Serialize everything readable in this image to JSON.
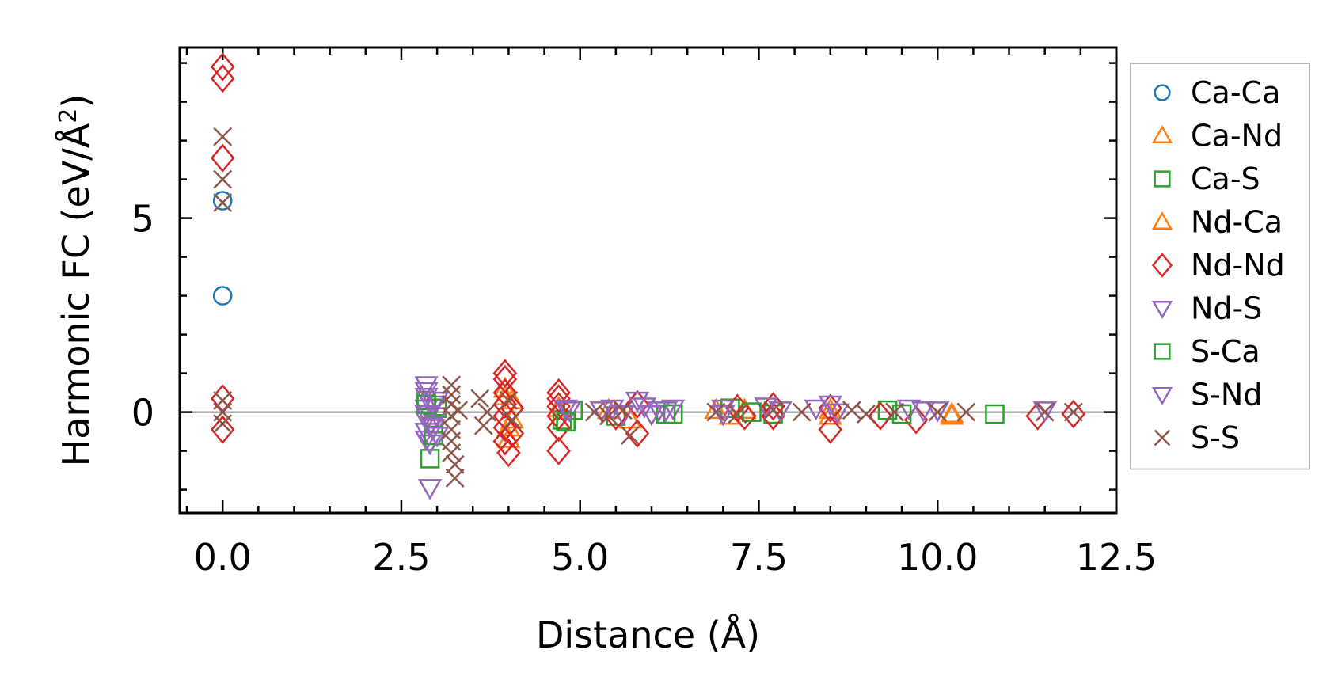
{
  "chart_data": {
    "type": "scatter",
    "title": "",
    "xlabel": "Distance (Å)",
    "ylabel_main": "Harmonic FC (eV/Å",
    "ylabel_sup": "2",
    "ylabel_close": ")",
    "xlim": [
      -0.6,
      12.5
    ],
    "ylim": [
      -2.6,
      9.4
    ],
    "xticks": [
      0.0,
      2.5,
      5.0,
      7.5,
      10.0,
      12.5
    ],
    "xtick_labels": [
      "0.0",
      "2.5",
      "5.0",
      "7.5",
      "10.0",
      "12.5"
    ],
    "yticks": [
      0,
      5
    ],
    "ytick_labels": [
      "0",
      "5"
    ],
    "reference_line_y": 0,
    "legend_position": "right-outside",
    "series": [
      {
        "name": "Ca-Ca",
        "marker": "circle",
        "color": "#1f77b4",
        "points": [
          [
            0,
            5.45
          ],
          [
            0,
            3.0
          ]
        ]
      },
      {
        "name": "Ca-Nd",
        "marker": "triangle-up",
        "color": "#ff7f0e",
        "points": [
          [
            3.95,
            0.6
          ],
          [
            4.0,
            -0.4
          ],
          [
            4.05,
            0.3
          ],
          [
            4.7,
            0.1
          ],
          [
            5.7,
            -0.2
          ],
          [
            7.1,
            -0.1
          ],
          [
            7.3,
            0.05
          ],
          [
            8.5,
            -0.1
          ],
          [
            10.2,
            -0.1
          ]
        ]
      },
      {
        "name": "Ca-S",
        "marker": "square",
        "color": "#2ca02c",
        "points": [
          [
            2.85,
            0.3
          ],
          [
            2.9,
            -1.2
          ],
          [
            2.95,
            -0.3
          ],
          [
            3.0,
            0.1
          ],
          [
            4.75,
            -0.2
          ],
          [
            4.9,
            0.05
          ],
          [
            5.5,
            -0.1
          ],
          [
            6.3,
            -0.05
          ],
          [
            7.1,
            0.1
          ],
          [
            7.7,
            -0.05
          ],
          [
            9.3,
            0.05
          ],
          [
            10.8,
            -0.05
          ]
        ]
      },
      {
        "name": "Nd-Ca",
        "marker": "triangle-up",
        "color": "#ff7f0e",
        "points": [
          [
            3.95,
            0.4
          ],
          [
            4.0,
            -0.7
          ],
          [
            4.05,
            -0.2
          ],
          [
            5.4,
            0.05
          ],
          [
            6.9,
            0.05
          ],
          [
            8.5,
            0.05
          ],
          [
            10.2,
            -0.05
          ]
        ]
      },
      {
        "name": "Nd-Nd",
        "marker": "diamond",
        "color": "#d62728",
        "points": [
          [
            0,
            8.9
          ],
          [
            0,
            8.6
          ],
          [
            0,
            6.55
          ],
          [
            0,
            0.35
          ],
          [
            0,
            -0.45
          ],
          [
            3.95,
            1.0
          ],
          [
            3.95,
            0.85
          ],
          [
            3.95,
            0.5
          ],
          [
            3.95,
            0.2
          ],
          [
            3.95,
            -0.1
          ],
          [
            3.95,
            -0.4
          ],
          [
            3.95,
            -0.75
          ],
          [
            4.0,
            -1.05
          ],
          [
            4.05,
            -0.55
          ],
          [
            4.05,
            0.1
          ],
          [
            4.7,
            0.5
          ],
          [
            4.7,
            0.35
          ],
          [
            4.7,
            0.15
          ],
          [
            4.7,
            -0.1
          ],
          [
            4.7,
            -0.4
          ],
          [
            4.7,
            -1.0
          ],
          [
            5.5,
            -0.1
          ],
          [
            5.8,
            -0.55
          ],
          [
            5.8,
            0.2
          ],
          [
            7.2,
            0.1
          ],
          [
            7.3,
            -0.1
          ],
          [
            7.7,
            -0.1
          ],
          [
            7.7,
            0.15
          ],
          [
            8.5,
            -0.45
          ],
          [
            8.5,
            0.1
          ],
          [
            9.2,
            -0.1
          ],
          [
            9.7,
            -0.2
          ],
          [
            11.4,
            -0.1
          ],
          [
            11.9,
            -0.05
          ]
        ]
      },
      {
        "name": "Nd-S",
        "marker": "triangle-down",
        "color": "#9467bd",
        "points": [
          [
            2.85,
            0.7
          ],
          [
            2.85,
            0.4
          ],
          [
            2.85,
            0.1
          ],
          [
            2.85,
            -0.2
          ],
          [
            2.85,
            -0.5
          ],
          [
            2.9,
            -0.8
          ],
          [
            2.9,
            -1.95
          ],
          [
            2.95,
            0.2
          ],
          [
            2.95,
            -0.4
          ],
          [
            3.0,
            -0.1
          ],
          [
            4.85,
            0.05
          ],
          [
            5.45,
            0.1
          ],
          [
            5.8,
            0.3
          ],
          [
            6.1,
            0.05
          ],
          [
            6.3,
            0.1
          ],
          [
            7.0,
            0.1
          ],
          [
            7.6,
            0.15
          ],
          [
            8.3,
            0.1
          ],
          [
            8.5,
            0.2
          ],
          [
            9.6,
            0.1
          ],
          [
            10.0,
            0.05
          ],
          [
            11.5,
            0.05
          ]
        ]
      },
      {
        "name": "S-Ca",
        "marker": "square",
        "color": "#2ca02c",
        "points": [
          [
            2.85,
            0.2
          ],
          [
            2.95,
            -0.6
          ],
          [
            4.8,
            -0.25
          ],
          [
            6.2,
            -0.05
          ],
          [
            7.4,
            0.0
          ],
          [
            9.5,
            -0.05
          ]
        ]
      },
      {
        "name": "S-Nd",
        "marker": "triangle-down",
        "color": "#9467bd",
        "points": [
          [
            2.85,
            0.55
          ],
          [
            2.85,
            -0.05
          ],
          [
            2.85,
            -0.7
          ],
          [
            2.9,
            -0.35
          ],
          [
            3.0,
            0.3
          ],
          [
            3.0,
            -0.6
          ],
          [
            4.8,
            0.1
          ],
          [
            5.3,
            0.05
          ],
          [
            5.6,
            -0.05
          ],
          [
            5.9,
            0.15
          ],
          [
            6.0,
            -0.05
          ],
          [
            6.2,
            0.05
          ],
          [
            7.0,
            -0.05
          ],
          [
            7.8,
            0.05
          ],
          [
            8.6,
            0.0
          ],
          [
            9.8,
            0.05
          ]
        ]
      },
      {
        "name": "S-S",
        "marker": "x",
        "color": "#8c564b",
        "points": [
          [
            0,
            7.1
          ],
          [
            0,
            6.0
          ],
          [
            0,
            5.4
          ],
          [
            0,
            0.3
          ],
          [
            0,
            0.0
          ],
          [
            0,
            -0.3
          ],
          [
            3.2,
            0.7
          ],
          [
            3.2,
            0.45
          ],
          [
            3.2,
            0.2
          ],
          [
            3.2,
            -0.1
          ],
          [
            3.2,
            -0.45
          ],
          [
            3.2,
            -0.75
          ],
          [
            3.2,
            -1.05
          ],
          [
            3.25,
            -1.35
          ],
          [
            3.25,
            -1.7
          ],
          [
            3.3,
            0.05
          ],
          [
            3.6,
            0.35
          ],
          [
            3.65,
            -0.35
          ],
          [
            3.7,
            0.0
          ],
          [
            4.0,
            0.3
          ],
          [
            4.05,
            -0.2
          ],
          [
            5.2,
            0.0
          ],
          [
            5.4,
            -0.1
          ],
          [
            5.6,
            0.05
          ],
          [
            5.7,
            -0.6
          ],
          [
            6.9,
            0.0
          ],
          [
            7.2,
            -0.05
          ],
          [
            7.7,
            0.05
          ],
          [
            8.1,
            0.0
          ],
          [
            8.8,
            0.05
          ],
          [
            9.0,
            -0.05
          ],
          [
            9.4,
            0.0
          ],
          [
            10.0,
            0.0
          ],
          [
            10.4,
            0.0
          ],
          [
            11.5,
            0.0
          ],
          [
            11.9,
            0.0
          ]
        ]
      }
    ]
  }
}
